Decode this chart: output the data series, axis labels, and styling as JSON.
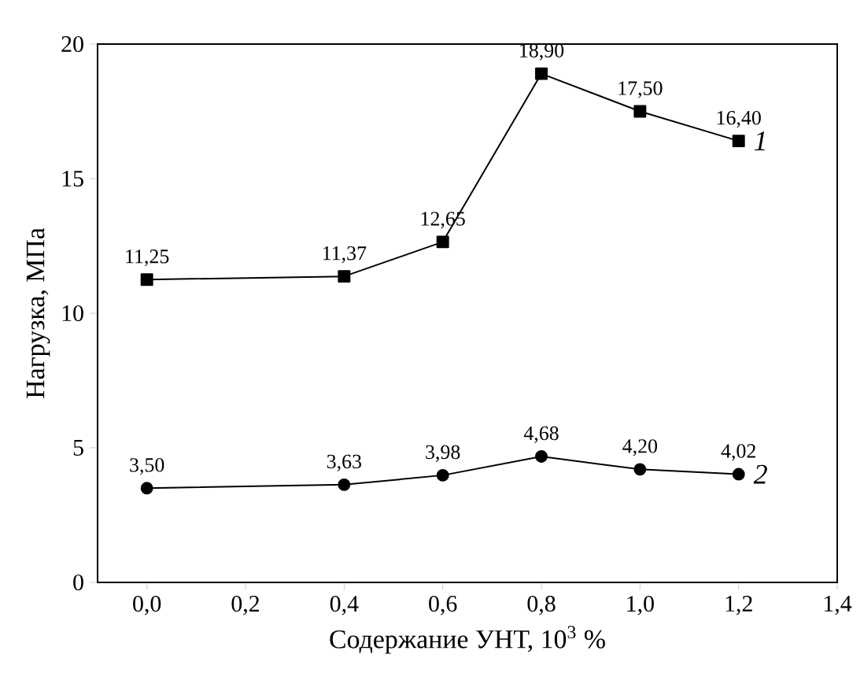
{
  "chart_data": {
    "type": "line",
    "xlabel": "Содержание УНТ, 10$^{3}$ %",
    "ylabel": "Нагрузка, МПа",
    "xlim": [
      -0.1,
      1.4
    ],
    "xticks": [
      {
        "value": 0.0,
        "label": "0,0"
      },
      {
        "value": 0.2,
        "label": "0,2"
      },
      {
        "value": 0.4,
        "label": "0,4"
      },
      {
        "value": 0.6,
        "label": "0,6"
      },
      {
        "value": 0.8,
        "label": "0,8"
      },
      {
        "value": 1.0,
        "label": "1,0"
      },
      {
        "value": 1.2,
        "label": "1,2"
      },
      {
        "value": 1.4,
        "label": "1,4"
      }
    ],
    "ylim": [
      0,
      20
    ],
    "yticks": [
      0,
      5,
      10,
      15,
      20
    ],
    "x": [
      0.0,
      0.4,
      0.6,
      0.8,
      1.0,
      1.2
    ],
    "series": [
      {
        "name": "1",
        "color": "#000000",
        "marker": "square",
        "values": [
          11.25,
          11.37,
          12.65,
          18.9,
          17.5,
          16.4
        ],
        "value_labels": [
          "11,25",
          "11,37",
          "12,65",
          "18,90",
          "17,50",
          "16,40"
        ]
      },
      {
        "name": "2",
        "color": "#000000",
        "marker": "circle",
        "values": [
          3.5,
          3.63,
          3.98,
          4.68,
          4.2,
          4.02
        ],
        "value_labels": [
          "3,50",
          "3,63",
          "3,98",
          "4,68",
          "4,20",
          "4,02"
        ]
      }
    ],
    "grid": false,
    "legend": false,
    "line_style": "solid"
  }
}
